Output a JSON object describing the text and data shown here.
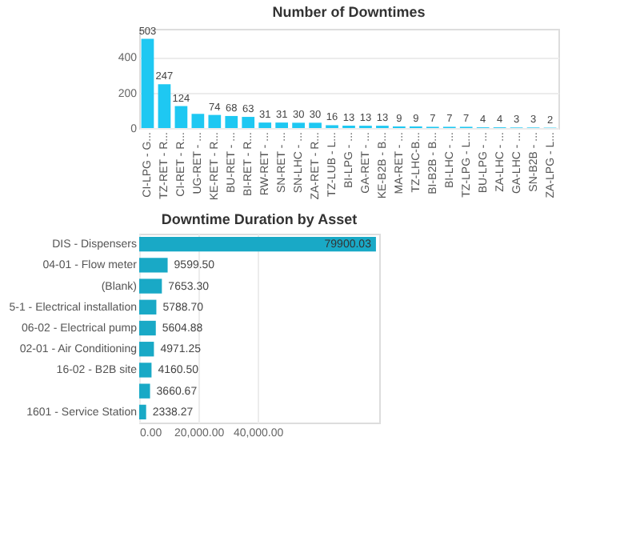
{
  "chart_data": [
    {
      "type": "bar",
      "title": "Number of Downtimes",
      "categories": [
        "CI-LPG - G...",
        "TZ-RET - R...",
        "CI-RET - R...",
        "UG-RET - ...",
        "KE-RET - R...",
        "BU-RET - ...",
        "BI-RET - R...",
        "RW-RET - ...",
        "SN-RET - ...",
        "SN-LHC - ...",
        "ZA-RET - R...",
        "TZ-LUB - L...",
        "BI-LPG - ...",
        "GA-RET - ...",
        "KE-B2B - B...",
        "MA-RET - ...",
        "TZ-LHC-B...",
        "BI-B2B - B...",
        "BI-LHC - ...",
        "TZ-LPG - L...",
        "BU-LPG - ...",
        "ZA-LHC - ...",
        "GA-LHC - ...",
        "SN-B2B - ...",
        "ZA-LPG - L..."
      ],
      "values": [
        503,
        247,
        124,
        80,
        74,
        68,
        63,
        31,
        31,
        30,
        30,
        16,
        13,
        13,
        13,
        9,
        9,
        7,
        7,
        7,
        4,
        4,
        3,
        3,
        2
      ],
      "value_labels": [
        "503",
        "247",
        "124",
        null,
        "74",
        "68",
        "63",
        "31",
        "31",
        "30",
        "30",
        "16",
        "13",
        "13",
        "13",
        "9",
        "9",
        "7",
        "7",
        "7",
        "4",
        "4",
        "3",
        "3",
        "2"
      ],
      "color": "#1ec8f2",
      "ylim": [
        0,
        560
      ],
      "yticks": [
        0,
        200,
        400
      ],
      "grid": "y"
    },
    {
      "type": "bar",
      "orientation": "horizontal",
      "title": "Downtime Duration by Asset",
      "categories": [
        "DIS - Dispensers",
        "04-01 - Flow meter",
        "(Blank)",
        "5-1 - Electrical installation",
        "06-02 - Electrical pump",
        "02-01 - Air Conditioning",
        "16-02 - B2B site",
        null,
        "1601 - Service Station"
      ],
      "values": [
        79900.03,
        9599.5,
        7653.3,
        5788.7,
        5604.88,
        4971.25,
        4160.5,
        3660.67,
        2338.27
      ],
      "value_labels": [
        "79900.03",
        "9599.50",
        "7653.30",
        "5788.70",
        "5604.88",
        "4971.25",
        "4160.50",
        "3660.67",
        "2338.27"
      ],
      "color": "#19a9c6",
      "xlim": [
        0,
        81000
      ],
      "xticks": [
        {
          "value": 0,
          "label": "0.00"
        },
        {
          "value": 20000,
          "label": "20,000.00"
        },
        {
          "value": 40000,
          "label": "40,000.00"
        }
      ],
      "grid": "x"
    }
  ]
}
